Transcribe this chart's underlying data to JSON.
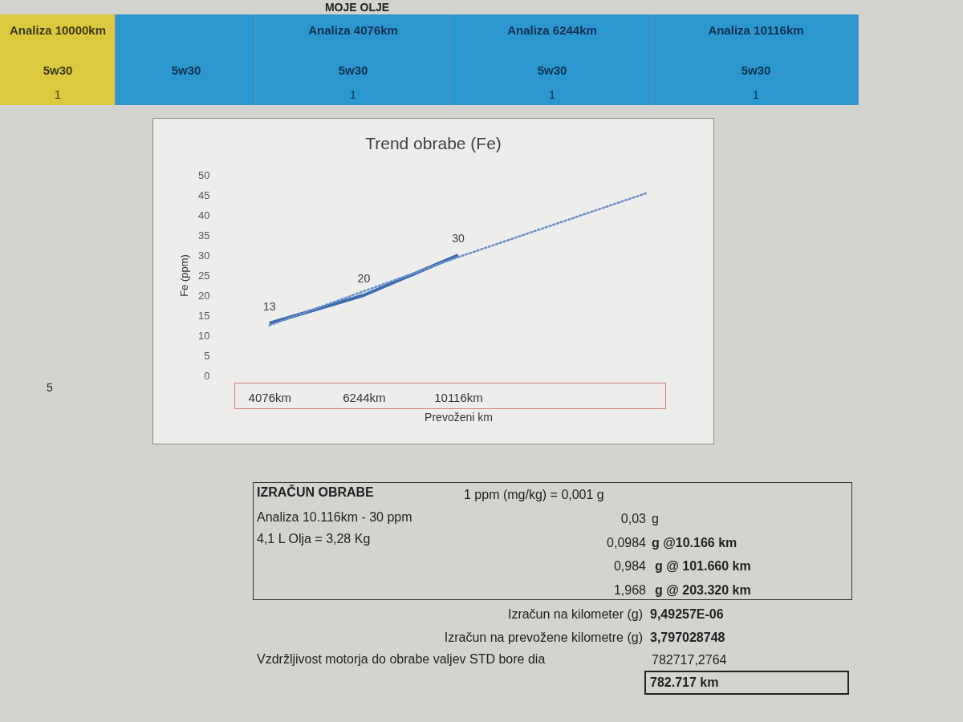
{
  "chart_data": {
    "type": "line",
    "title": "Trend obrabe (Fe)",
    "xlabel": "Prevoženi km",
    "ylabel": "Fe (ppm)",
    "categories": [
      "4076km",
      "6244km",
      "10116km",
      null,
      null
    ],
    "series": [
      {
        "color": "#3a6cae",
        "values": [
          13,
          20,
          30,
          null,
          null
        ],
        "value_labels": [
          "13",
          "20",
          "30",
          null,
          null
        ]
      },
      {
        "type": "line",
        "line_style": "dotted",
        "color": "#6a90c8",
        "values": [
          12.5,
          21,
          29.5,
          37.5,
          45.5
        ]
      }
    ],
    "ylim": [
      0,
      50
    ],
    "yticks": [
      0,
      5,
      10,
      15,
      20,
      25,
      30,
      35,
      40,
      45,
      50
    ],
    "annotations": [
      "MOJE OLJE",
      "Analiza 10000km",
      "5w30",
      "1",
      "5w30",
      "Analiza 4076km",
      "5w30",
      "1",
      "Analiza 6244km",
      "5w30",
      "1",
      "Analiza 10116km",
      "5w30",
      "1",
      "5",
      "IZRAČUN OBRABE",
      "1 ppm (mg/kg) = 0,001 g",
      "Analiza 10.116km - 30 ppm",
      "0,03",
      "g",
      "4,1 L Olja = 3,28 Kg",
      "0,0984",
      "g @10.166 km",
      "0,984",
      "g @ 101.660 km",
      "1,968",
      "g @ 203.320 km",
      "Izračun na kilometer (g)",
      "9,49257E-06",
      "Izračun na prevožene kilometre (g)",
      "3,797028748",
      "Vzdržljivost motorja do obrabe valjev STD bore dia",
      "782717,2764",
      "782.717 km"
    ]
  }
}
